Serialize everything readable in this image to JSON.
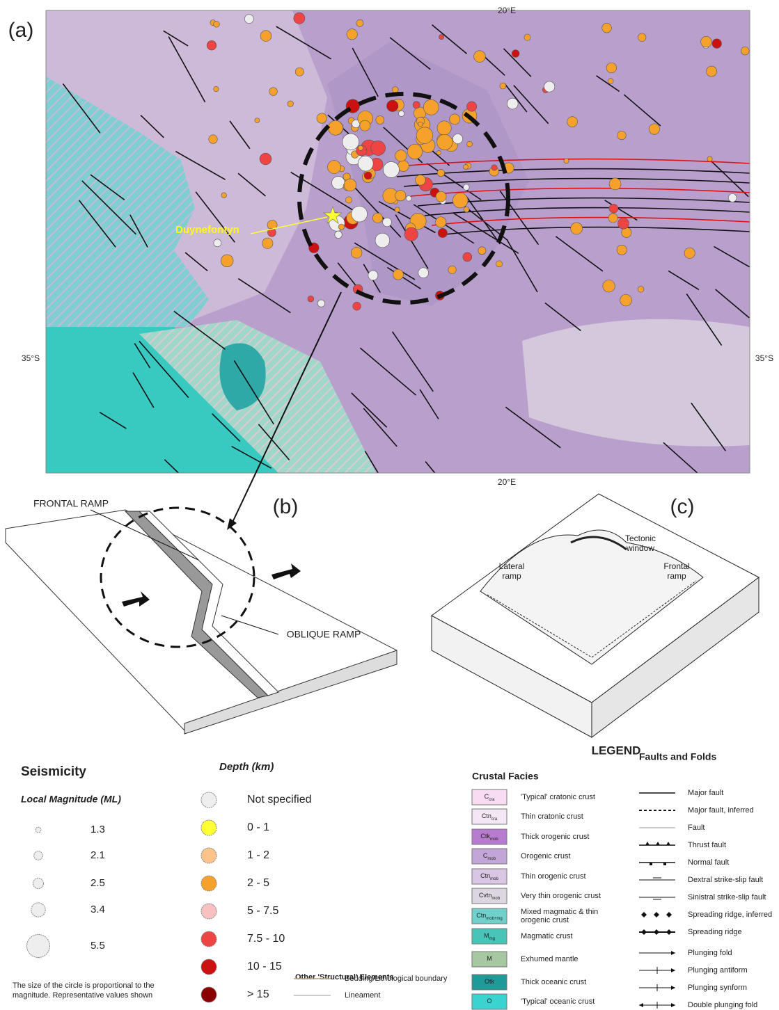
{
  "panels": {
    "a": "(a)",
    "b": "(b)",
    "c": "(c)"
  },
  "map": {
    "lon_label_top": "20°E",
    "lon_label_bottom": "20°E",
    "lat_label_left": "35°S",
    "lat_label_right": "35°S",
    "site": "Duynefontyn"
  },
  "panel_b": {
    "frontal": "FRONTAL RAMP",
    "oblique": "OBLIQUE RAMP"
  },
  "panel_c": {
    "window": [
      "Tectonic",
      "window"
    ],
    "lateral": [
      "Lateral",
      "ramp"
    ],
    "frontal": [
      "Frontal",
      "ramp"
    ]
  },
  "legend": {
    "title": "LEGEND",
    "seismicity": {
      "title": "Seismicity",
      "magnitude_title": "Local Magnitude (ML)",
      "magnitudes": [
        1.3,
        2.1,
        2.5,
        3.4,
        5.5
      ],
      "note": [
        "The size of the circle is proportional to the",
        "magnitude. Representative values shown"
      ]
    },
    "depth": {
      "title": "Depth (km)",
      "classes": [
        {
          "label": "Not specified",
          "color": "#eeeeee"
        },
        {
          "label": "0 - 1",
          "color": "#ffff33"
        },
        {
          "label": "1 - 2",
          "color": "#fdc38a"
        },
        {
          "label": "2 - 5",
          "color": "#f6a12c"
        },
        {
          "label": "5 - 7.5",
          "color": "#f8c0c0"
        },
        {
          "label": "7.5 - 10",
          "color": "#ee4444"
        },
        {
          "label": "10 - 15",
          "color": "#cc1111"
        },
        {
          "label": "> 15",
          "color": "#8b0000"
        }
      ]
    },
    "structural": {
      "title": "Other 'Structural' Elements",
      "items": [
        {
          "label": "Bedding/Lithological boundary",
          "color": "#b8a070"
        },
        {
          "label": "Lineament",
          "color": "#bbbbbb"
        }
      ]
    },
    "crustal": {
      "title": "Crustal Facies",
      "items": [
        {
          "code": "C",
          "sub": "cra",
          "label": "'Typical' cratonic crust",
          "color": "#f7dcf3"
        },
        {
          "code": "Ctn",
          "sub": "cra",
          "label": "Thin cratonic crust",
          "color": "#f4e6f4"
        },
        {
          "code": "Ctk",
          "sub": "mob",
          "label": "Thick orogenic crust",
          "color": "#b77bd0"
        },
        {
          "code": "C",
          "sub": "mob",
          "label": "Orogenic crust",
          "color": "#c3a6d8"
        },
        {
          "code": "Ctn",
          "sub": "mob",
          "label": "Thin orogenic crust",
          "color": "#d8c6e4"
        },
        {
          "code": "Cvtn",
          "sub": "mob",
          "label": "Very thin orogenic crust",
          "color": "#dcd6e0"
        },
        {
          "code": "Ctn",
          "sub": "mob+mg",
          "label": [
            "Mixed magmatic & thin",
            "orogenic crust"
          ],
          "color": "#6fd0cc"
        },
        {
          "code": "M",
          "sub": "mg",
          "label": "Magmatic crust",
          "color": "#48c4b8"
        },
        {
          "code": "M",
          "label": "Exhumed mantle",
          "color": "#a6c8a0"
        },
        {
          "code": "Otk",
          "label": "Thick oceanic crust",
          "color": "#1e9a98"
        },
        {
          "code": "O",
          "label": "'Typical' oceanic crust",
          "color": "#39d4d0"
        }
      ]
    },
    "faults": {
      "title": "Faults and Folds",
      "items": [
        "Major fault",
        "Major fault, inferred",
        "Fault",
        "Thrust fault",
        "Normal fault",
        "Dextral strike-slip fault",
        "Sinistral strike-slip fault",
        "Spreading ridge, inferred",
        "Spreading ridge",
        "Plunging fold",
        "Plunging antiform",
        "Plunging synform",
        "Double plunging fold"
      ]
    }
  }
}
